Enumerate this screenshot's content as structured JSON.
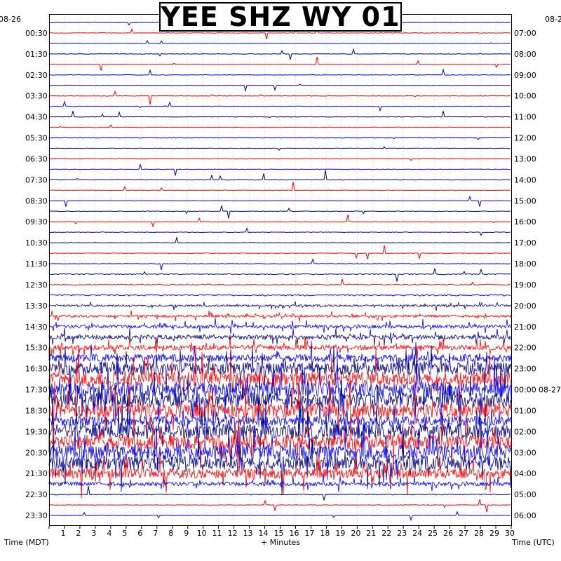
{
  "chart_data": {
    "type": "helicorder",
    "title": "YEE SHZ WY 01",
    "xlabel": "+ Minutes",
    "x_ticks": [
      1,
      2,
      3,
      4,
      5,
      6,
      7,
      8,
      9,
      10,
      11,
      12,
      13,
      14,
      15,
      16,
      17,
      18,
      19,
      20,
      21,
      22,
      23,
      24,
      25,
      26,
      27,
      28,
      29,
      30
    ],
    "xlim": [
      0,
      30
    ],
    "left_axis_label": "Time (MDT)",
    "right_axis_label": "Time (UTC)",
    "left_date": "08-26",
    "right_date": "08-2",
    "right_date_change": "08-27",
    "rows_per_hour": 2,
    "total_rows": 48,
    "left_times": [
      "00:30",
      "01:30",
      "02:30",
      "03:30",
      "04:30",
      "05:30",
      "06:30",
      "07:30",
      "08:30",
      "09:30",
      "10:30",
      "11:30",
      "12:30",
      "13:30",
      "14:30",
      "15:30",
      "16:30",
      "17:30",
      "18:30",
      "19:30",
      "20:30",
      "21:30",
      "22:30",
      "23:30"
    ],
    "right_times": [
      "07:00",
      "08:00",
      "09:00",
      "10:00",
      "11:00",
      "12:00",
      "13:00",
      "14:00",
      "15:00",
      "16:00",
      "17:00",
      "18:00",
      "19:00",
      "20:00",
      "21:00",
      "22:00",
      "23:00",
      "00:00",
      "01:00",
      "02:00",
      "03:00",
      "04:00",
      "05:00",
      "06:00"
    ],
    "trace_colors": [
      "#000080",
      "#ff0000",
      "#0000ff"
    ],
    "row_amplitude": [
      1,
      1,
      1,
      1,
      1,
      1,
      1,
      1,
      1,
      1,
      1,
      1,
      1,
      1,
      1,
      1,
      1,
      1,
      1,
      1,
      1,
      1,
      1,
      1,
      2,
      2,
      3,
      4,
      5,
      7,
      9,
      10,
      16,
      26,
      30,
      30,
      30,
      30,
      20,
      30,
      30,
      30,
      30,
      20,
      8,
      2,
      1,
      1
    ],
    "grid": "dotted"
  }
}
